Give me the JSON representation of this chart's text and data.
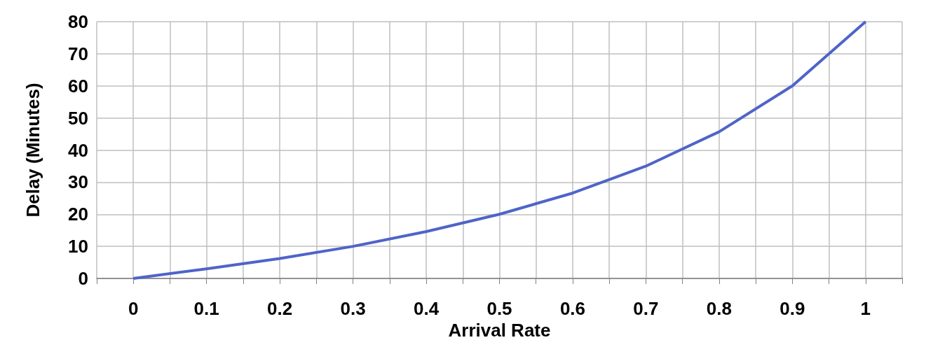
{
  "chart_data": {
    "type": "line",
    "xlabel": "Arrival Rate",
    "ylabel": "Delay (Minutes)",
    "x": [
      0,
      0.1,
      0.2,
      0.3,
      0.4,
      0.5,
      0.6,
      0.7,
      0.8,
      0.9,
      1
    ],
    "series": [
      {
        "color": "#4f64c8",
        "values": [
          0,
          3,
          6.2,
          10,
          14.6,
          20,
          26.6,
          35,
          45.7,
          60,
          80
        ]
      }
    ],
    "xlim": [
      -0.05,
      1.05
    ],
    "xticks": [
      {
        "value": -0.05,
        "label": null
      },
      0,
      {
        "value": 0.05,
        "label": null
      },
      0.1,
      {
        "value": 0.15,
        "label": null
      },
      0.2,
      {
        "value": 0.25,
        "label": null
      },
      0.3,
      {
        "value": 0.35,
        "label": null
      },
      0.4,
      {
        "value": 0.45,
        "label": null
      },
      0.5,
      {
        "value": 0.55,
        "label": null
      },
      0.6,
      {
        "value": 0.65,
        "label": null
      },
      0.7,
      {
        "value": 0.75,
        "label": null
      },
      0.8,
      {
        "value": 0.85,
        "label": null
      },
      0.9,
      {
        "value": 0.95,
        "label": null
      },
      1,
      {
        "value": 1.05,
        "label": null
      }
    ],
    "ylim": [
      0,
      80
    ],
    "yticks": [
      0,
      10,
      20,
      30,
      40,
      50,
      60,
      70,
      80
    ],
    "grid": true,
    "marker": "none",
    "line_style": "solid"
  }
}
